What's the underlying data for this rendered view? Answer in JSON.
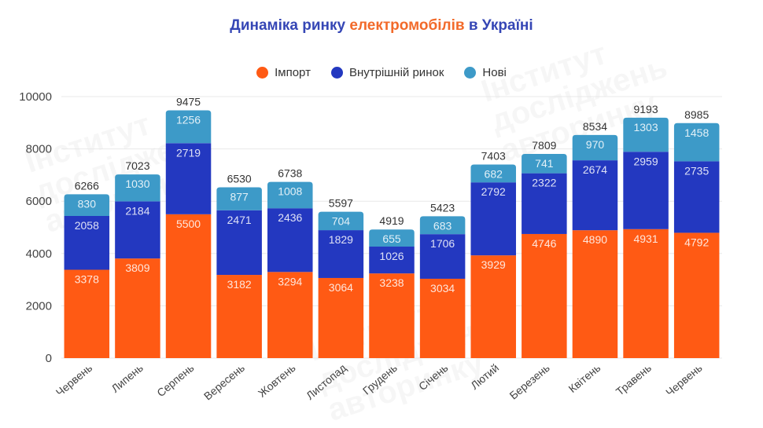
{
  "title": {
    "part1": "Динаміка ринку ",
    "part2": "електромобілів",
    "part3": " в Україні"
  },
  "watermark_text": "Інститут\nдосліджень\nавторинку",
  "colors": {
    "title": "#3546b5",
    "title_accent": "#f26a2a",
    "import": "#ff5a14",
    "domestic": "#2338c0",
    "new": "#3d9ac8",
    "grid": "#e8e8e8",
    "axis_text": "#444444",
    "total_text": "#333333"
  },
  "chart_data": {
    "type": "bar",
    "stacked": true,
    "title": "Динаміка ринку електромобілів в Україні",
    "xlabel": "",
    "ylabel": "",
    "ylim": [
      0,
      10000
    ],
    "yticks": [
      0,
      2000,
      4000,
      6000,
      8000,
      10000
    ],
    "grid": true,
    "legend_position": "top",
    "categories": [
      "Червень",
      "Липень",
      "Серпень",
      "Вересень",
      "Жовтень",
      "Листопад",
      "Грудень",
      "Січень",
      "Лютий",
      "Березень",
      "Квітень",
      "Травень",
      "Червень"
    ],
    "series": [
      {
        "name": "Імпорт",
        "color": "#ff5a14",
        "values": [
          3378,
          3809,
          5500,
          3182,
          3294,
          3064,
          3238,
          3034,
          3929,
          4746,
          4890,
          4931,
          4792
        ]
      },
      {
        "name": "Внутрішній ринок",
        "color": "#2338c0",
        "values": [
          2058,
          2184,
          2719,
          2471,
          2436,
          1829,
          1026,
          1706,
          2792,
          2322,
          2674,
          2959,
          2735
        ]
      },
      {
        "name": "Нові",
        "color": "#3d9ac8",
        "values": [
          830,
          1030,
          1256,
          877,
          1008,
          704,
          655,
          683,
          682,
          741,
          970,
          1303,
          1458
        ]
      }
    ],
    "totals": [
      6266,
      7023,
      9475,
      6530,
      6738,
      5597,
      4919,
      5423,
      7403,
      7809,
      8534,
      9193,
      8985
    ]
  }
}
